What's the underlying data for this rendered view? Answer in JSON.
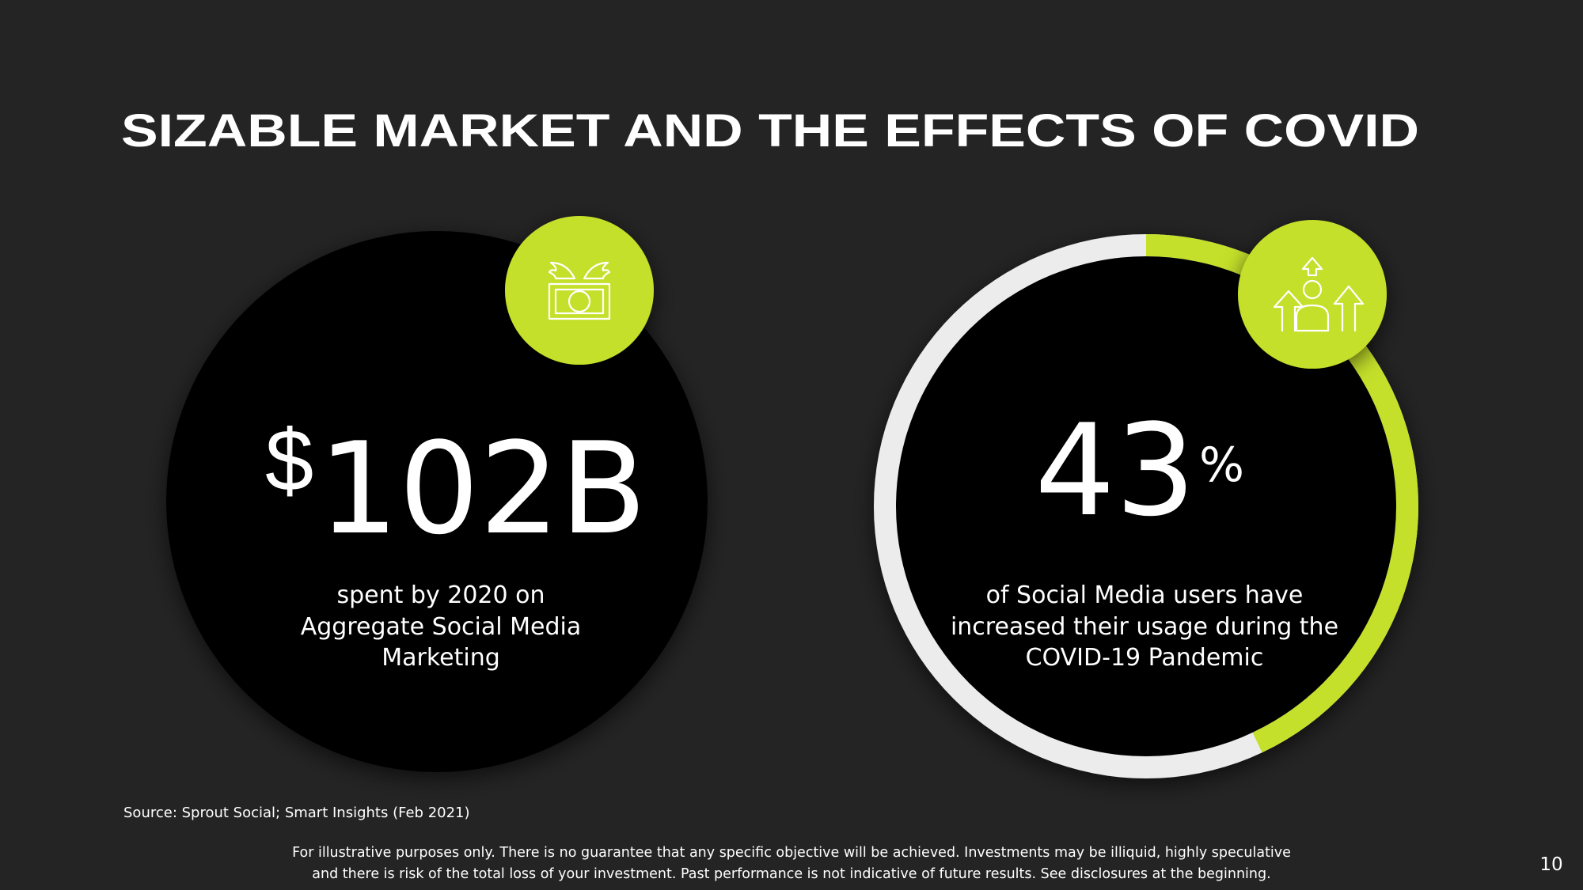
{
  "title": "SIZABLE MARKET AND THE EFFECTS OF COVID",
  "stats": [
    {
      "prefix": "$",
      "value": "102B",
      "caption": [
        "spent by 2020 on",
        "Aggregate Social Media",
        "Marketing"
      ]
    },
    {
      "value": 43,
      "suffix": "%",
      "caption": [
        "of Social Media users have",
        "increased their usage during the",
        "COVID-19 Pandemic"
      ]
    }
  ],
  "source": "Source: Sprout Social; Smart Insights (Feb 2021)",
  "disclaimer": [
    "For illustrative purposes only. There is no guarantee that any specific objective will be achieved. Investments may be illiquid, highly speculative",
    "and there is risk of the total loss of your investment. Past performance is not indicative of future results. See disclosures at the beginning."
  ],
  "page_number": "10"
}
